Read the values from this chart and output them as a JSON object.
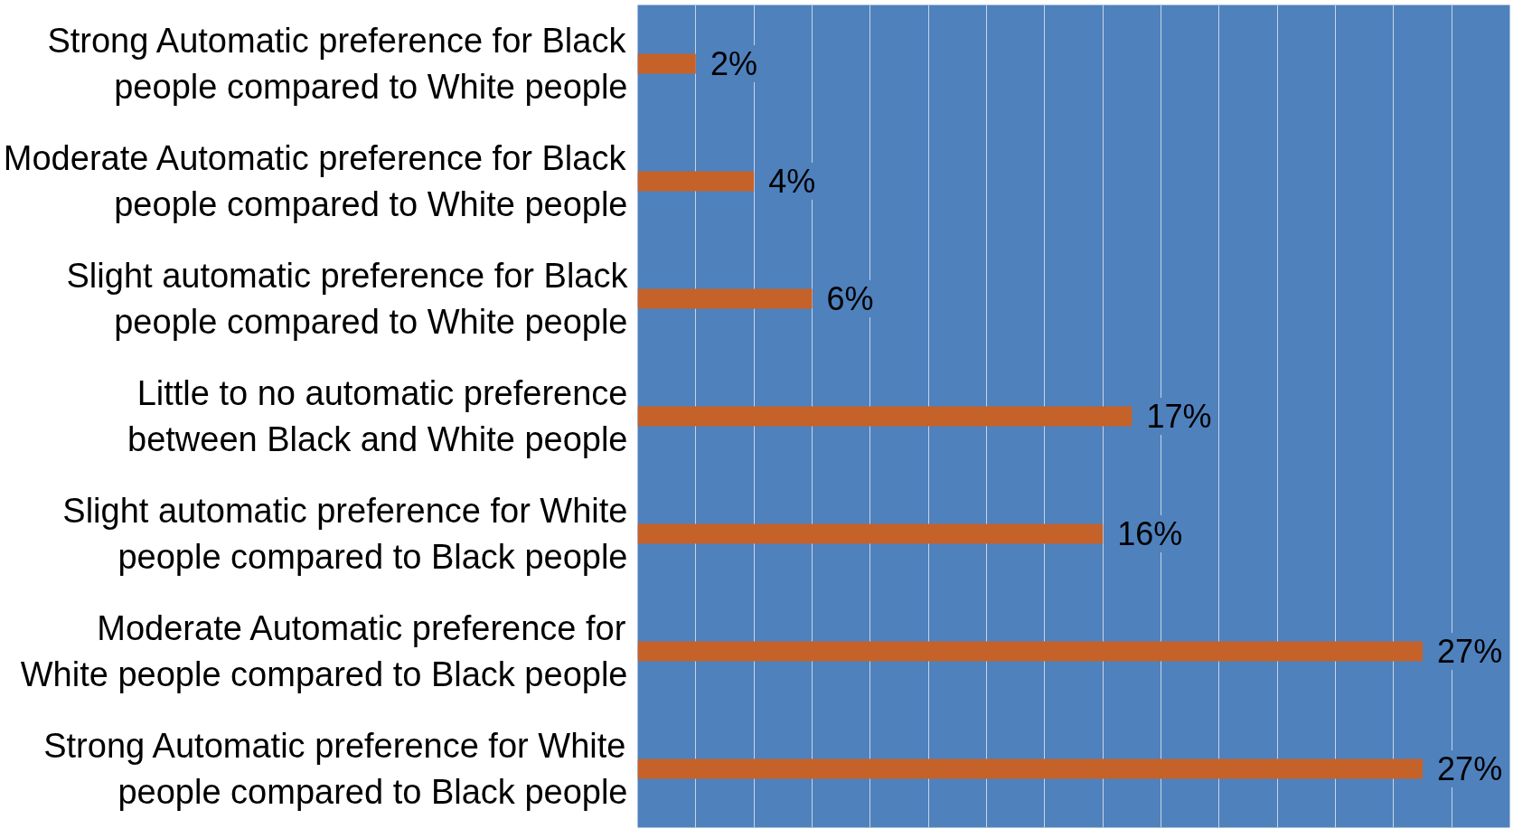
{
  "chart_data": {
    "type": "bar",
    "orientation": "horizontal",
    "categories": [
      "Strong Automatic preference for Black\npeople compared to White people",
      "Moderate Automatic preference for Black\npeople compared to White people",
      "Slight automatic preference for Black\npeople compared to White people",
      "Little to no automatic preference\nbetween Black and White people",
      "Slight automatic preference for White\npeople compared to Black people",
      "Moderate Automatic preference for\nWhite people compared to Black people",
      "Strong Automatic preference for White\npeople compared to Black people"
    ],
    "values": [
      2,
      4,
      6,
      17,
      16,
      27,
      27
    ],
    "value_labels": [
      "2%",
      "4%",
      "6%",
      "17%",
      "16%",
      "27%",
      "27%"
    ],
    "color": "#c5622a",
    "xlim": [
      0,
      30
    ],
    "xticks": [
      {
        "value": 0,
        "label": null
      },
      {
        "value": 2,
        "label": null
      },
      {
        "value": 4,
        "label": null
      },
      {
        "value": 6,
        "label": null
      },
      {
        "value": 8,
        "label": null
      },
      {
        "value": 10,
        "label": null
      },
      {
        "value": 12,
        "label": null
      },
      {
        "value": 14,
        "label": null
      },
      {
        "value": 16,
        "label": null
      },
      {
        "value": 18,
        "label": null
      },
      {
        "value": 20,
        "label": null
      },
      {
        "value": 22,
        "label": null
      },
      {
        "value": 24,
        "label": null
      },
      {
        "value": 26,
        "label": null
      },
      {
        "value": 28,
        "label": null
      },
      {
        "value": 30,
        "label": null
      }
    ],
    "grid": "x",
    "tick_labels": "y"
  }
}
